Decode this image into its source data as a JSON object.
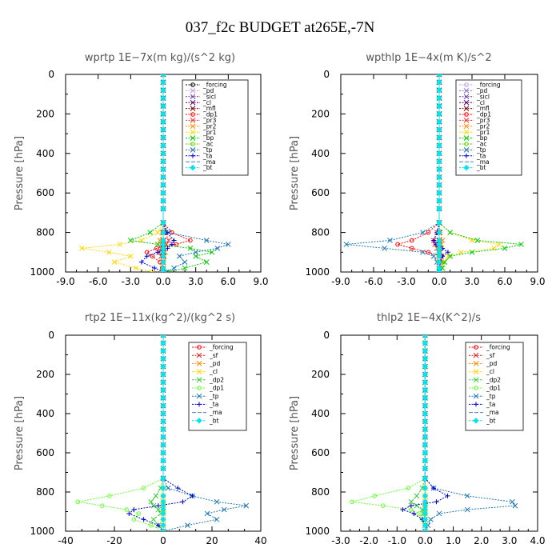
{
  "suptitle": "037_f2c  BUDGET at265E,-7N",
  "chart_data": [
    {
      "type": "line",
      "title": "wprtp   1E−7x(m kg)/(s^2 kg)",
      "ylabel": "Pressure  [hPa]",
      "xlim": [
        -9,
        9
      ],
      "ylim": [
        1000,
        0
      ],
      "xticks": [
        "-9.0",
        "-6.0",
        "-3.0",
        "0.0",
        "3.0",
        "6.0",
        "9.0"
      ],
      "xtick_values": [
        -9,
        -6,
        -3,
        0,
        3,
        6,
        9
      ],
      "yticks": [
        "0",
        "200",
        "400",
        "600",
        "800",
        "1000"
      ],
      "ytick_values": [
        0,
        200,
        400,
        600,
        800,
        1000
      ],
      "legend_position": "top-right",
      "pressure": [
        750,
        800,
        840,
        860,
        880,
        900,
        920,
        950,
        980,
        1000
      ],
      "series": [
        {
          "name": "_forcing",
          "color": "#000000",
          "marker": "o",
          "values": [
            0,
            0,
            0,
            0,
            0,
            0,
            0,
            0,
            0,
            0
          ]
        },
        {
          "name": "_pd",
          "color": "#c9a0dc",
          "marker": "x",
          "values": [
            0,
            0,
            0,
            0,
            0,
            0,
            0,
            0,
            0,
            0
          ]
        },
        {
          "name": "_sicl",
          "color": "#6a3d9a",
          "marker": "x",
          "values": [
            0,
            0,
            0,
            0,
            0,
            0,
            0,
            0,
            0,
            0
          ]
        },
        {
          "name": "_cl",
          "color": "#4b0082",
          "marker": "x",
          "values": [
            0,
            0,
            0,
            0,
            0,
            0,
            0,
            0,
            0,
            0
          ]
        },
        {
          "name": "_mfl",
          "color": "#8b0000",
          "marker": "x",
          "values": [
            0,
            0,
            0,
            0,
            0,
            0,
            0,
            0,
            0,
            0
          ]
        },
        {
          "name": "_dp1",
          "color": "#ff0000",
          "marker": "o",
          "values": [
            0,
            0.8,
            2.5,
            1.2,
            -0.6,
            -1.5,
            -1.0,
            -0.3,
            -0.1,
            0
          ]
        },
        {
          "name": "_pr3",
          "color": "#ff3333",
          "marker": "x",
          "values": [
            0,
            0.2,
            0.5,
            0.3,
            -0.2,
            -0.4,
            -0.2,
            -0.1,
            0,
            0
          ]
        },
        {
          "name": "_pr2",
          "color": "#ff8c00",
          "marker": "x",
          "values": [
            0,
            -0.1,
            -0.3,
            -0.2,
            0.1,
            0.2,
            0.1,
            0,
            0,
            0
          ]
        },
        {
          "name": "_pr1",
          "color": "#ffd700",
          "marker": "x",
          "values": [
            0,
            -0.5,
            -2.0,
            -4.0,
            -7.5,
            -5.0,
            -3.0,
            -4.5,
            -2.5,
            -1.0
          ]
        },
        {
          "name": "_bp",
          "color": "#00cc00",
          "marker": "x",
          "values": [
            0,
            -1.2,
            -3.0,
            -0.5,
            2.5,
            4.5,
            3.0,
            4.0,
            2.0,
            0.5
          ]
        },
        {
          "name": "_ac",
          "color": "#66cc00",
          "marker": "o",
          "values": [
            0,
            0,
            0,
            0,
            0,
            0,
            0,
            0,
            0,
            0
          ]
        },
        {
          "name": "_tp",
          "color": "#1f77b4",
          "marker": "x",
          "values": [
            0,
            0.5,
            4.0,
            6.0,
            5.0,
            3.0,
            1.5,
            2.0,
            1.0,
            0.3
          ]
        },
        {
          "name": "_ta",
          "color": "#0000cc",
          "marker": "+",
          "values": [
            0,
            0.3,
            1.0,
            0.8,
            0.4,
            -0.5,
            -1.5,
            -2.0,
            -0.8,
            0
          ]
        },
        {
          "name": "_ma",
          "color": "#4682b4",
          "marker": "-",
          "values": [
            0,
            0,
            0,
            0,
            0,
            0,
            0,
            0,
            0,
            0
          ]
        },
        {
          "name": "_bt",
          "color": "#00e5ee",
          "marker": "D",
          "values": [
            0,
            0,
            0,
            0,
            0,
            0,
            0,
            0,
            0,
            0
          ]
        }
      ]
    },
    {
      "type": "line",
      "title": "wpthlp   1E−4x(m K)/s^2",
      "ylabel": "Pressure  [hPa]",
      "xlim": [
        -9,
        9
      ],
      "ylim": [
        1000,
        0
      ],
      "xticks": [
        "-9.0",
        "-6.0",
        "-3.0",
        "0.0",
        "3.0",
        "6.0",
        "9.0"
      ],
      "xtick_values": [
        -9,
        -6,
        -3,
        0,
        3,
        6,
        9
      ],
      "yticks": [
        "0",
        "200",
        "400",
        "600",
        "800",
        "1000"
      ],
      "ytick_values": [
        0,
        200,
        400,
        600,
        800,
        1000
      ],
      "legend_position": "top-right",
      "pressure": [
        750,
        800,
        840,
        860,
        880,
        900,
        920,
        950,
        980,
        1000
      ],
      "series": [
        {
          "name": "_forcing",
          "color": "#c9a0dc",
          "marker": "o",
          "values": [
            0,
            0,
            0,
            0,
            0,
            0,
            0,
            0,
            0,
            0
          ]
        },
        {
          "name": "_pd",
          "color": "#9370db",
          "marker": "x",
          "values": [
            0,
            0,
            0,
            0,
            0,
            0,
            0,
            0,
            0,
            0
          ]
        },
        {
          "name": "_sicl",
          "color": "#6a3d9a",
          "marker": "x",
          "values": [
            0,
            0,
            0,
            0,
            0,
            0,
            0,
            0,
            0,
            0
          ]
        },
        {
          "name": "_cl",
          "color": "#4b0082",
          "marker": "x",
          "values": [
            0,
            0,
            0,
            0,
            0,
            0,
            0,
            0,
            0,
            0
          ]
        },
        {
          "name": "_mfl",
          "color": "#8b0000",
          "marker": "x",
          "values": [
            0,
            0,
            0,
            0,
            0,
            0,
            0,
            0,
            0,
            0
          ]
        },
        {
          "name": "_dp1",
          "color": "#ff0000",
          "marker": "o",
          "values": [
            0,
            -1.0,
            -2.5,
            -3.8,
            -2.5,
            -1.0,
            0.2,
            0.1,
            0,
            0
          ]
        },
        {
          "name": "_pr3",
          "color": "#ff3333",
          "marker": "x",
          "values": [
            0,
            -0.2,
            -0.5,
            -0.4,
            -0.2,
            0.1,
            0.2,
            0.1,
            0,
            0
          ]
        },
        {
          "name": "_pr2",
          "color": "#ff8c00",
          "marker": "x",
          "values": [
            0,
            0.1,
            0.3,
            0.2,
            0.1,
            0,
            0,
            0,
            0,
            0
          ]
        },
        {
          "name": "_pr1",
          "color": "#ffd700",
          "marker": "x",
          "values": [
            0,
            1.0,
            3.0,
            5.5,
            5.0,
            2.0,
            0.8,
            0.4,
            0.2,
            0
          ]
        },
        {
          "name": "_bp",
          "color": "#00cc00",
          "marker": "x",
          "values": [
            0,
            1.0,
            3.5,
            7.5,
            6.0,
            3.0,
            1.0,
            0.5,
            0.3,
            0
          ]
        },
        {
          "name": "_ac",
          "color": "#66cc00",
          "marker": "o",
          "values": [
            0,
            0,
            0,
            0,
            0,
            0,
            0,
            0,
            0,
            0
          ]
        },
        {
          "name": "_tp",
          "color": "#1f77b4",
          "marker": "x",
          "values": [
            0,
            -1.5,
            -4.5,
            -8.5,
            -5.0,
            -1.5,
            -0.5,
            -0.2,
            0,
            0
          ]
        },
        {
          "name": "_ta",
          "color": "#0000cc",
          "marker": "+",
          "values": [
            0,
            -0.2,
            -0.5,
            -0.3,
            0.3,
            0.8,
            0.3,
            0.1,
            0,
            0
          ]
        },
        {
          "name": "_ma",
          "color": "#4682b4",
          "marker": "-",
          "values": [
            0,
            0,
            0,
            0,
            0,
            0,
            0,
            0,
            0,
            0
          ]
        },
        {
          "name": "_bt",
          "color": "#00e5ee",
          "marker": "D",
          "values": [
            0,
            0,
            0,
            0,
            0,
            0,
            0,
            0,
            0,
            0
          ]
        }
      ]
    },
    {
      "type": "line",
      "title": "rtp2   1E−11x(kg^2)/(kg^2 s)",
      "ylabel": "Pressure  [hPa]",
      "xlim": [
        -40,
        40
      ],
      "ylim": [
        1000,
        0
      ],
      "xticks": [
        "-40",
        "-20",
        "0",
        "20",
        "40"
      ],
      "xtick_values": [
        -40,
        -20,
        0,
        20,
        40
      ],
      "yticks": [
        "0",
        "200",
        "400",
        "600",
        "800",
        "1000"
      ],
      "ytick_values": [
        0,
        200,
        400,
        600,
        800,
        1000
      ],
      "legend_position": "top-right",
      "pressure": [
        730,
        780,
        820,
        850,
        870,
        890,
        910,
        940,
        970,
        1000
      ],
      "series": [
        {
          "name": "_forcing",
          "color": "#ff0000",
          "marker": "o",
          "values": [
            0,
            0,
            0,
            0,
            0,
            0,
            0,
            0,
            0,
            0
          ]
        },
        {
          "name": "_sf",
          "color": "#e41a1c",
          "marker": "x",
          "values": [
            0,
            0,
            0,
            0,
            0,
            0,
            0,
            0,
            0,
            0
          ]
        },
        {
          "name": "_pd",
          "color": "#ff8c00",
          "marker": "x",
          "values": [
            0,
            0,
            0,
            0,
            0,
            0,
            0,
            0,
            0,
            0
          ]
        },
        {
          "name": "_cl",
          "color": "#ffd700",
          "marker": "x",
          "values": [
            0,
            0,
            0,
            0,
            0,
            0,
            0,
            0,
            0,
            0
          ]
        },
        {
          "name": "_dp2",
          "color": "#33cc33",
          "marker": "x",
          "values": [
            0,
            -1,
            -3,
            -5,
            -4,
            -2,
            -1,
            -4,
            -2,
            0
          ]
        },
        {
          "name": "_dp1",
          "color": "#66ff33",
          "marker": "o",
          "values": [
            0,
            -8,
            -22,
            -35,
            -25,
            -15,
            -10,
            -12,
            -5,
            0
          ]
        },
        {
          "name": "_tp",
          "color": "#1f77b4",
          "marker": "x",
          "values": [
            0,
            2,
            12,
            22,
            34,
            25,
            18,
            22,
            10,
            0
          ]
        },
        {
          "name": "_ta",
          "color": "#0000cc",
          "marker": "+",
          "values": [
            0,
            6,
            12,
            8,
            -2,
            -12,
            -14,
            -8,
            -2,
            0
          ]
        },
        {
          "name": "_ma",
          "color": "#4682b4",
          "marker": "-",
          "values": [
            0,
            0,
            0,
            0,
            0,
            0,
            0,
            0,
            0,
            0
          ]
        },
        {
          "name": "_bt",
          "color": "#00e5ee",
          "marker": "D",
          "values": [
            0,
            0,
            0,
            0,
            0,
            0,
            0,
            0,
            0,
            0
          ]
        }
      ]
    },
    {
      "type": "line",
      "title": "thlp2   1E−4x(K^2)/s",
      "ylabel": "Pressure  [hPa]",
      "xlim": [
        -3,
        4
      ],
      "ylim": [
        1000,
        0
      ],
      "xticks": [
        "-3.0",
        "-2.0",
        "-1.0",
        "0.0",
        "1.0",
        "2.0",
        "3.0",
        "4.0"
      ],
      "xtick_values": [
        -3,
        -2,
        -1,
        0,
        1,
        2,
        3,
        4
      ],
      "yticks": [
        "0",
        "200",
        "400",
        "600",
        "800",
        "1000"
      ],
      "ytick_values": [
        0,
        200,
        400,
        600,
        800,
        1000
      ],
      "legend_position": "top-right",
      "pressure": [
        730,
        780,
        820,
        850,
        870,
        890,
        910,
        940,
        970,
        1000
      ],
      "series": [
        {
          "name": "_forcing",
          "color": "#ff0000",
          "marker": "o",
          "values": [
            0,
            0,
            0,
            0,
            0,
            0,
            0,
            0,
            0,
            0
          ]
        },
        {
          "name": "_sf",
          "color": "#e41a1c",
          "marker": "x",
          "values": [
            0,
            0,
            0,
            0,
            0,
            0,
            0,
            0,
            0,
            0
          ]
        },
        {
          "name": "_pd",
          "color": "#ff8c00",
          "marker": "x",
          "values": [
            0,
            0,
            0,
            0,
            0,
            0,
            0,
            0,
            0,
            0
          ]
        },
        {
          "name": "_cl",
          "color": "#ffd700",
          "marker": "x",
          "values": [
            0,
            0,
            0,
            0,
            0,
            0,
            0,
            0,
            0,
            0
          ]
        },
        {
          "name": "_dp2",
          "color": "#33cc33",
          "marker": "x",
          "values": [
            0,
            -0.1,
            -0.3,
            -0.5,
            -0.3,
            -0.1,
            -0.05,
            0,
            0,
            0
          ]
        },
        {
          "name": "_dp1",
          "color": "#66ff33",
          "marker": "o",
          "values": [
            0,
            -0.6,
            -1.8,
            -2.6,
            -1.5,
            -0.5,
            -0.2,
            -0.1,
            0,
            0
          ]
        },
        {
          "name": "_tp",
          "color": "#1f77b4",
          "marker": "x",
          "values": [
            0,
            0.3,
            1.5,
            3.1,
            3.2,
            1.5,
            0.5,
            0.2,
            0.1,
            0
          ]
        },
        {
          "name": "_ta",
          "color": "#0000cc",
          "marker": "+",
          "values": [
            0,
            0.3,
            0.8,
            0.4,
            -0.5,
            -0.8,
            -0.4,
            -0.1,
            0,
            0
          ]
        },
        {
          "name": "_ma",
          "color": "#4682b4",
          "marker": "-",
          "values": [
            0,
            0,
            0,
            0,
            0,
            0,
            0,
            0,
            0,
            0
          ]
        },
        {
          "name": "_bt",
          "color": "#00e5ee",
          "marker": "D",
          "values": [
            0,
            0,
            0,
            0,
            0,
            0,
            0,
            0,
            0,
            0
          ]
        }
      ]
    }
  ]
}
